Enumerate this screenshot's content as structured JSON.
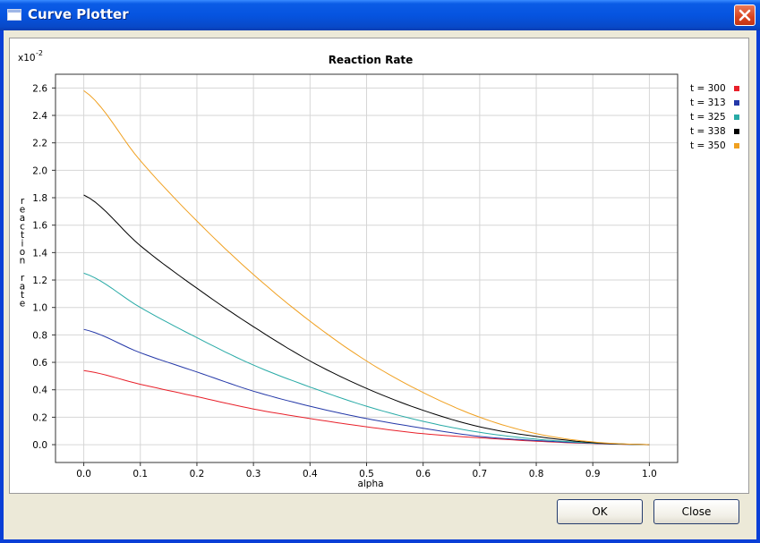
{
  "window": {
    "title": "Curve Plotter"
  },
  "buttons": {
    "ok_label": "OK",
    "close_label": "Close"
  },
  "colors": {
    "t300": "#e8202a",
    "t313": "#2438a8",
    "t325": "#28aaa6",
    "t338": "#000000",
    "t350": "#f0a020"
  },
  "chart_data": {
    "type": "line",
    "title": "Reaction Rate",
    "xlabel": "alpha",
    "ylabel": "reaction rate",
    "yexponent": "x10",
    "yexponent_power": "-2",
    "xlim": [
      -0.05,
      1.05
    ],
    "ylim": [
      -0.13,
      2.7
    ],
    "xticks": [
      "0.0",
      "0.1",
      "0.2",
      "0.3",
      "0.4",
      "0.5",
      "0.6",
      "0.7",
      "0.8",
      "0.9",
      "1.0"
    ],
    "yticks": [
      "0.0",
      "0.2",
      "0.4",
      "0.6",
      "0.8",
      "1.0",
      "1.2",
      "1.4",
      "1.6",
      "1.8",
      "2.0",
      "2.2",
      "2.4",
      "2.6"
    ],
    "grid": true,
    "legend_position": "right",
    "x": [
      0.0,
      0.1,
      0.2,
      0.3,
      0.4,
      0.5,
      0.6,
      0.7,
      0.8,
      0.9,
      1.0
    ],
    "series": [
      {
        "name": "t = 300",
        "color": "#e8202a",
        "values": [
          0.54,
          0.44,
          0.35,
          0.26,
          0.19,
          0.13,
          0.08,
          0.05,
          0.025,
          0.008,
          0.0
        ]
      },
      {
        "name": "t = 313",
        "color": "#2438a8",
        "values": [
          0.84,
          0.67,
          0.53,
          0.39,
          0.28,
          0.19,
          0.12,
          0.06,
          0.03,
          0.01,
          0.0
        ]
      },
      {
        "name": "t = 325",
        "color": "#28aaa6",
        "values": [
          1.25,
          1.0,
          0.78,
          0.58,
          0.42,
          0.28,
          0.17,
          0.09,
          0.04,
          0.012,
          0.0
        ]
      },
      {
        "name": "t = 338",
        "color": "#000000",
        "values": [
          1.82,
          1.45,
          1.14,
          0.86,
          0.61,
          0.41,
          0.25,
          0.13,
          0.06,
          0.015,
          0.0
        ]
      },
      {
        "name": "t = 350",
        "color": "#f0a020",
        "values": [
          2.58,
          2.07,
          1.63,
          1.24,
          0.9,
          0.61,
          0.38,
          0.2,
          0.08,
          0.02,
          0.0
        ]
      }
    ]
  }
}
